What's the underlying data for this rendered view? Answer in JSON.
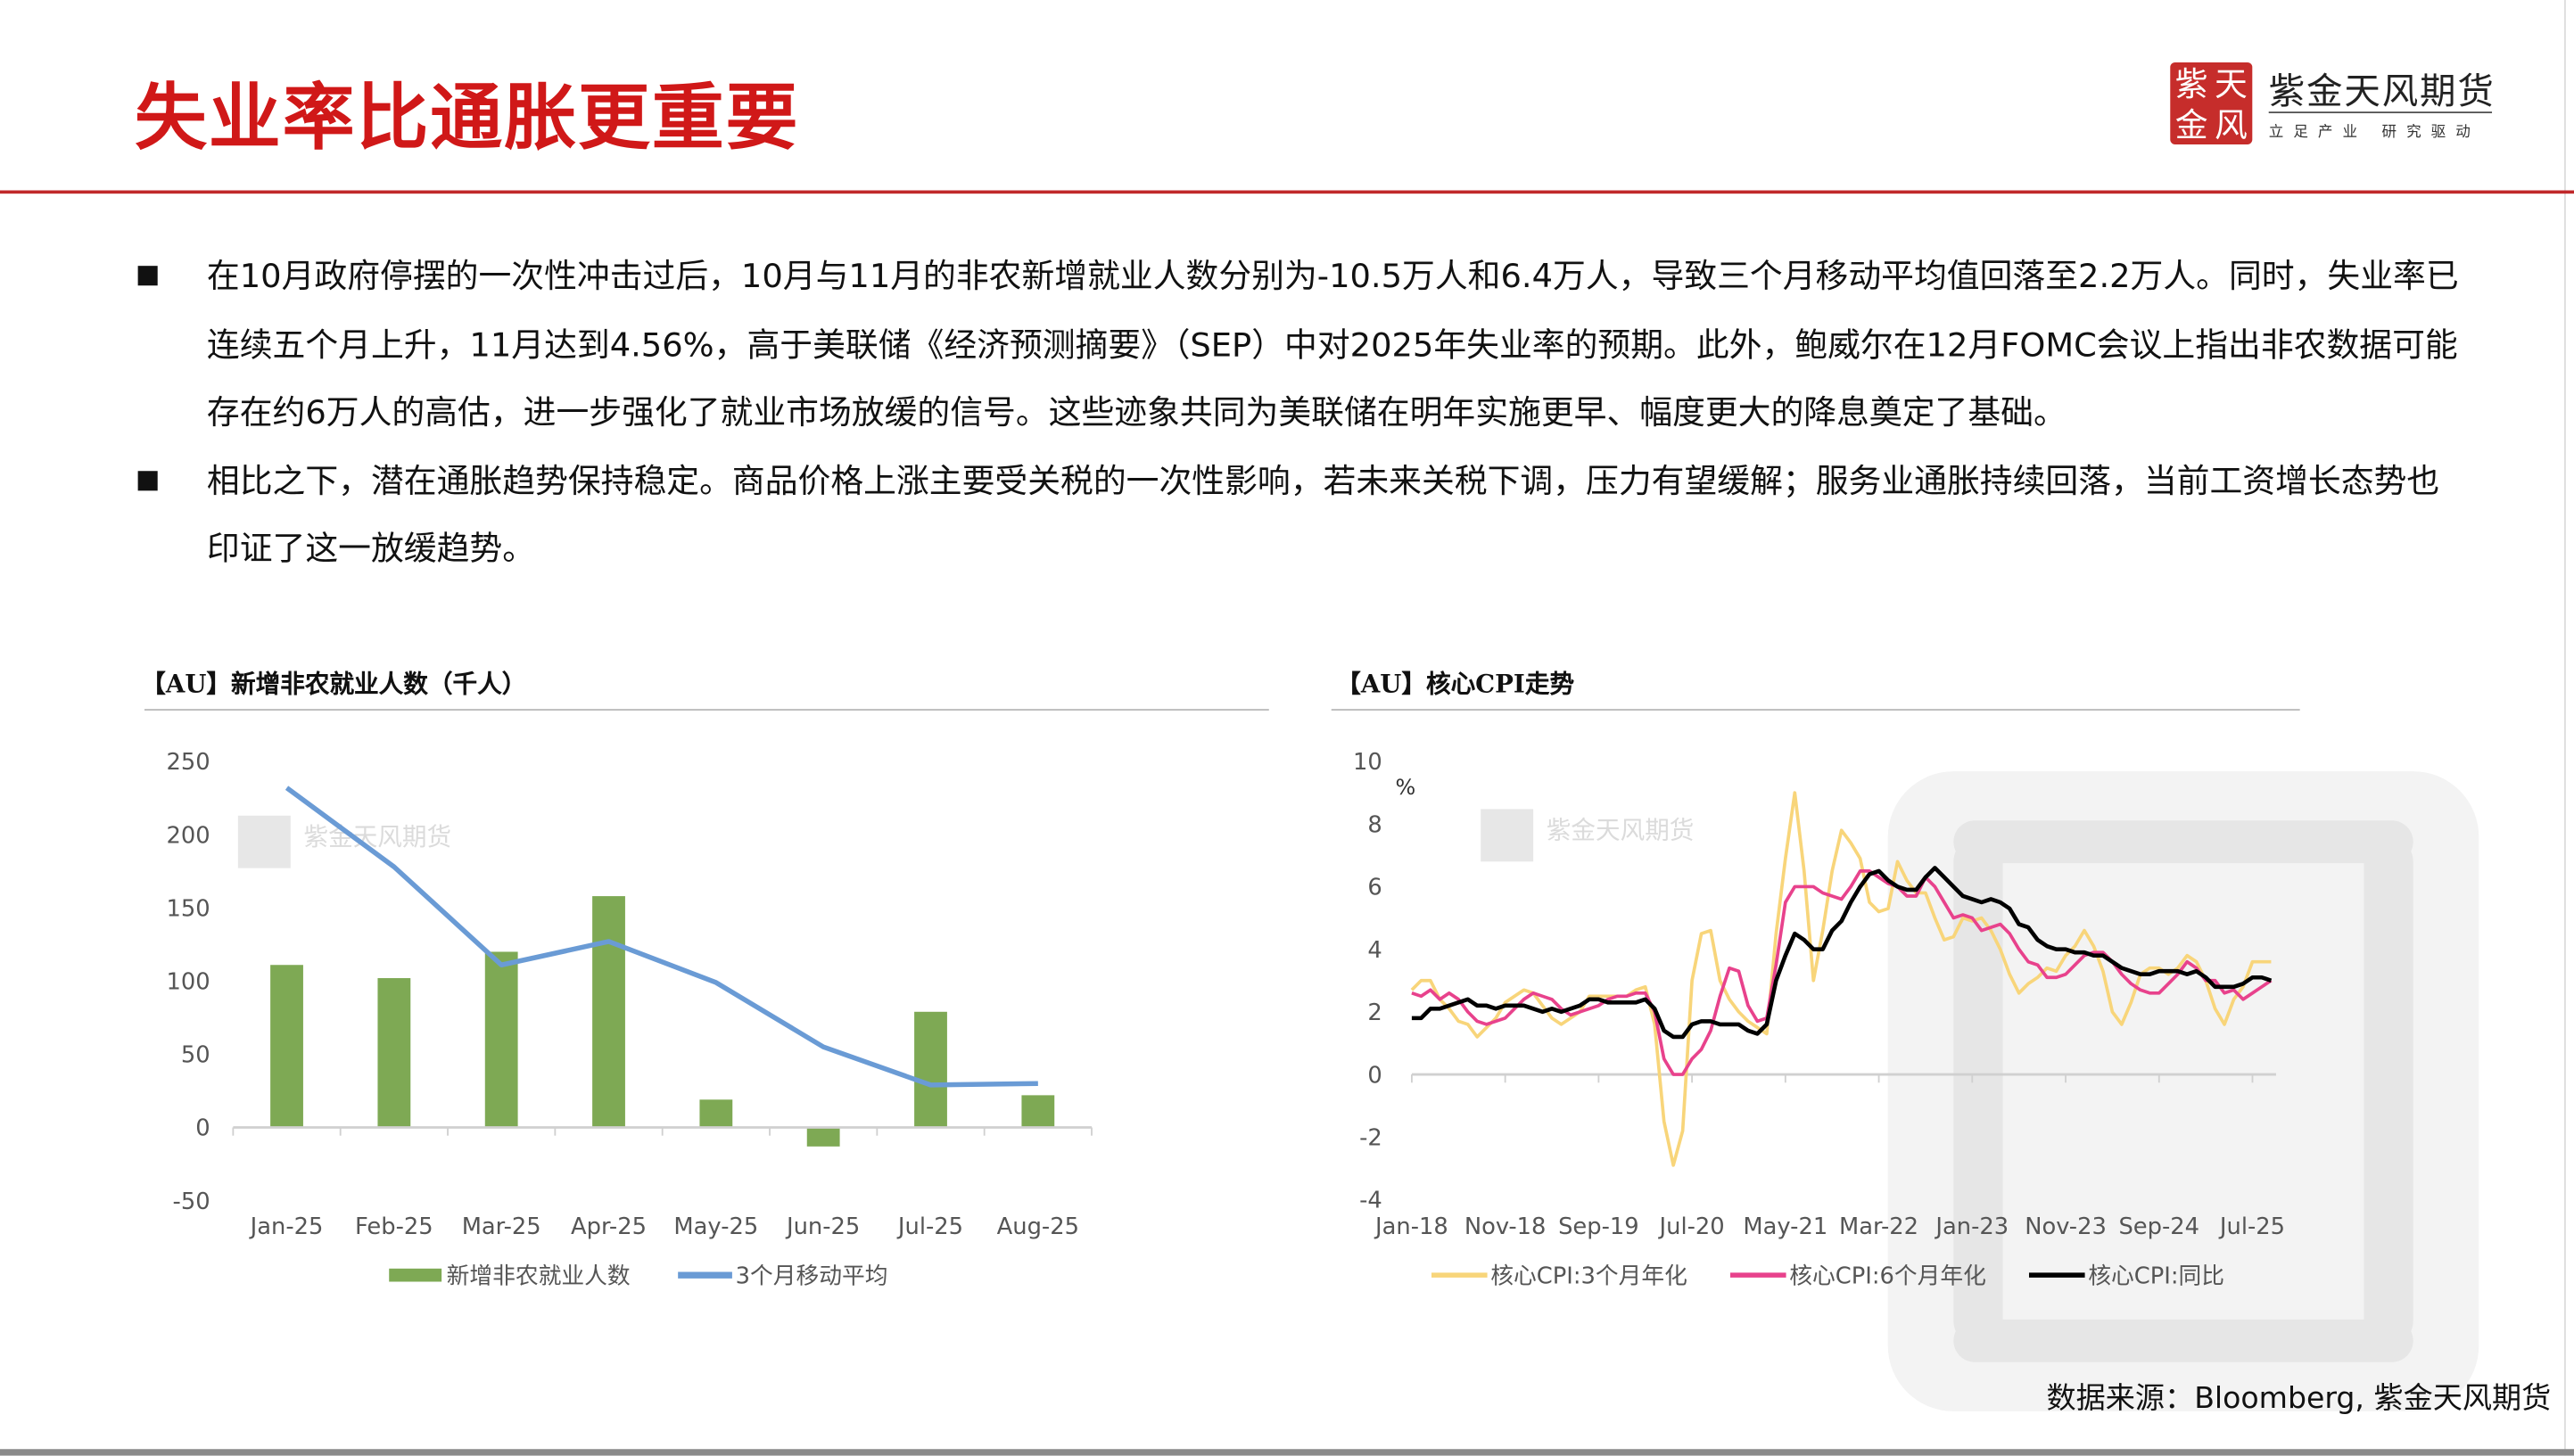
{
  "header": {
    "title": "失业率比通胀更重要",
    "logo": {
      "seal_chars": [
        "紫",
        "天",
        "金",
        "风"
      ],
      "name": "紫金天风期货",
      "tagline": "立足产业 研究驱动"
    }
  },
  "colors": {
    "title": "#d01818",
    "accent_line": "#c0282a",
    "bar": "#7ea954",
    "ma_line": "#6a9bd5",
    "cpi_3m": "#f8d57a",
    "cpi_6m": "#e8428c",
    "cpi_yoy": "#000000"
  },
  "bullets": [
    "在10月政府停摆的一次性冲击过后，10月与11月的非农新增就业人数分别为-10.5万人和6.4万人，导致三个月移动平均值回落至2.2万人。同时，失业率已连续五个月上升，11月达到4.56%，高于美联储《经济预测摘要》（SEP）中对2025年失业率的预期。此外，鲍威尔在12月FOMC会议上指出非农数据可能存在约6万人的高估，进一步强化了就业市场放缓的信号。这些迹象共同为美联储在明年实施更早、幅度更大的降息奠定了基础。",
    "相比之下，潜在通胀趋势保持稳定。商品价格上涨主要受关税的一次性影响，若未来关税下调，压力有望缓解；服务业通胀持续回落，当前工资增长态势也印证了这一放缓趋势。"
  ],
  "source": "数据来源：Bloomberg, 紫金天风期货",
  "chart_data": [
    {
      "type": "bar",
      "title": "【AU】新增非农就业人数（千人）",
      "categories": [
        "Jan-25",
        "Feb-25",
        "Mar-25",
        "Apr-25",
        "May-25",
        "Jun-25",
        "Jul-25",
        "Aug-25"
      ],
      "ylim": [
        -50,
        250
      ],
      "yticks": [
        250,
        200,
        150,
        100,
        50,
        0,
        -50
      ],
      "legend_position": "bottom",
      "grid": false,
      "series": [
        {
          "name": "新增非农就业人数",
          "type": "bar",
          "values": [
            111,
            102,
            120,
            158,
            19,
            -13,
            79,
            22
          ]
        },
        {
          "name": "3个月移动平均",
          "type": "line",
          "values": [
            232,
            178,
            111,
            127,
            99,
            55,
            29,
            30
          ]
        }
      ],
      "watermark": "紫金天风期货"
    },
    {
      "type": "line",
      "title": "【AU】核心CPI走势",
      "ylabel": "%",
      "ylim": [
        -4,
        10
      ],
      "yticks": [
        10,
        8,
        6,
        4,
        2,
        0,
        -2,
        -4
      ],
      "x_start": "Jan-18",
      "x_end": "Sep-25",
      "xticks": [
        "Jan-18",
        "Nov-18",
        "Sep-19",
        "Jul-20",
        "May-21",
        "Mar-22",
        "Jan-23",
        "Nov-23",
        "Sep-24",
        "Jul-25"
      ],
      "legend_position": "bottom",
      "grid": false,
      "series": [
        {
          "name": "核心CPI:3个月年化",
          "values": [
            2.7,
            3.0,
            3.0,
            2.4,
            2.1,
            1.7,
            1.6,
            1.2,
            1.5,
            1.8,
            2.3,
            2.5,
            2.7,
            2.6,
            2.2,
            1.8,
            1.6,
            1.8,
            2.0,
            2.5,
            2.5,
            2.5,
            2.5,
            2.5,
            2.7,
            2.8,
            1.6,
            -1.5,
            -2.9,
            -1.8,
            3.0,
            4.5,
            4.6,
            3.0,
            2.4,
            2.0,
            1.7,
            1.5,
            1.3,
            4.5,
            6.9,
            9.0,
            6.5,
            3.0,
            4.6,
            6.5,
            7.8,
            7.4,
            6.9,
            5.5,
            5.2,
            5.3,
            6.8,
            6.2,
            5.8,
            5.8,
            5.0,
            4.3,
            4.4,
            5.0,
            4.9,
            5.0,
            4.6,
            4.0,
            3.2,
            2.6,
            2.9,
            3.1,
            3.4,
            3.3,
            3.8,
            4.1,
            4.6,
            4.1,
            3.3,
            2.0,
            1.6,
            2.3,
            3.2,
            3.4,
            3.4,
            3.2,
            3.4,
            3.8,
            3.6,
            3.0,
            2.1,
            1.6,
            2.4,
            2.8,
            3.6,
            3.6,
            3.6
          ]
        },
        {
          "name": "核心CPI:6个月年化",
          "values": [
            2.6,
            2.5,
            2.7,
            2.4,
            2.6,
            2.4,
            2.0,
            1.7,
            1.6,
            1.7,
            1.8,
            2.1,
            2.4,
            2.6,
            2.5,
            2.4,
            2.1,
            1.9,
            2.0,
            2.1,
            2.2,
            2.4,
            2.5,
            2.5,
            2.6,
            2.6,
            2.0,
            0.5,
            0.0,
            0.0,
            0.5,
            0.8,
            1.4,
            2.5,
            3.4,
            3.3,
            2.2,
            1.7,
            1.8,
            3.5,
            5.5,
            6.0,
            6.0,
            6.0,
            5.8,
            5.7,
            5.6,
            6.0,
            6.5,
            6.5,
            6.3,
            6.1,
            6.0,
            5.7,
            5.7,
            6.3,
            6.0,
            5.5,
            5.0,
            5.1,
            5.0,
            4.6,
            4.7,
            4.8,
            4.5,
            4.0,
            3.6,
            3.5,
            3.1,
            3.1,
            3.2,
            3.5,
            3.8,
            3.9,
            3.9,
            3.6,
            3.2,
            2.9,
            2.7,
            2.6,
            2.6,
            2.9,
            3.2,
            3.6,
            3.4,
            3.0,
            3.0,
            2.6,
            2.7,
            2.4,
            2.6,
            2.8,
            3.0
          ]
        },
        {
          "name": "核心CPI:同比",
          "values": [
            1.8,
            1.8,
            2.1,
            2.1,
            2.2,
            2.3,
            2.4,
            2.2,
            2.2,
            2.1,
            2.2,
            2.2,
            2.2,
            2.1,
            2.0,
            2.1,
            2.0,
            2.1,
            2.2,
            2.4,
            2.4,
            2.3,
            2.3,
            2.3,
            2.3,
            2.4,
            2.1,
            1.4,
            1.2,
            1.2,
            1.6,
            1.7,
            1.7,
            1.6,
            1.6,
            1.6,
            1.4,
            1.3,
            1.6,
            3.0,
            3.8,
            4.5,
            4.3,
            4.0,
            4.0,
            4.6,
            4.9,
            5.5,
            6.0,
            6.4,
            6.5,
            6.2,
            6.0,
            5.9,
            5.9,
            6.3,
            6.6,
            6.3,
            6.0,
            5.7,
            5.6,
            5.5,
            5.6,
            5.5,
            5.3,
            4.8,
            4.7,
            4.3,
            4.1,
            4.0,
            4.0,
            3.9,
            3.9,
            3.8,
            3.8,
            3.6,
            3.4,
            3.3,
            3.2,
            3.2,
            3.3,
            3.3,
            3.3,
            3.2,
            3.3,
            3.1,
            2.8,
            2.8,
            2.8,
            2.9,
            3.1,
            3.1,
            3.0
          ]
        }
      ],
      "watermark": "紫金天风期货"
    }
  ]
}
